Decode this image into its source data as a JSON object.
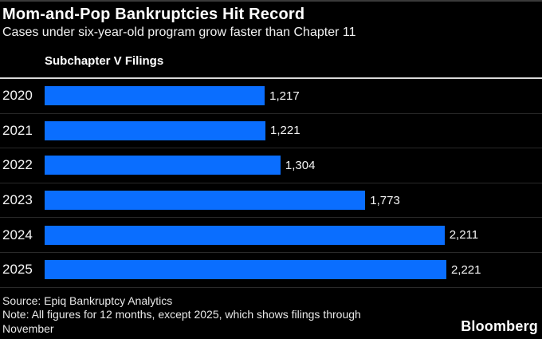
{
  "header": {
    "title": "Mom-and-Pop Bankruptcies Hit Record",
    "subtitle": "Cases under six-year-old program grow faster than Chapter 11"
  },
  "chart_data": {
    "type": "bar",
    "orientation": "horizontal",
    "title": "Subchapter V Filings",
    "categories": [
      "2020",
      "2021",
      "2022",
      "2023",
      "2024",
      "2025"
    ],
    "values": [
      1217,
      1221,
      1304,
      1773,
      2211,
      2221
    ],
    "value_labels": [
      "1,217",
      "1,221",
      "1,304",
      "1,773",
      "2,211",
      "2,221"
    ],
    "xlabel": "",
    "ylabel": "",
    "xlim": [
      0,
      2750
    ],
    "grid": false,
    "legend": "none",
    "bar_color": "#0a6eff"
  },
  "footer": {
    "source": "Source: Epiq Bankruptcy Analytics",
    "note": "Note: All figures for 12 months, except 2025, which shows filings through November",
    "logo": "Bloomberg"
  },
  "colors": {
    "background": "#000000",
    "bar": "#0a6eff",
    "axis_line": "#d9d9d9",
    "row_divider": "#292929",
    "text": "#ffffff"
  }
}
